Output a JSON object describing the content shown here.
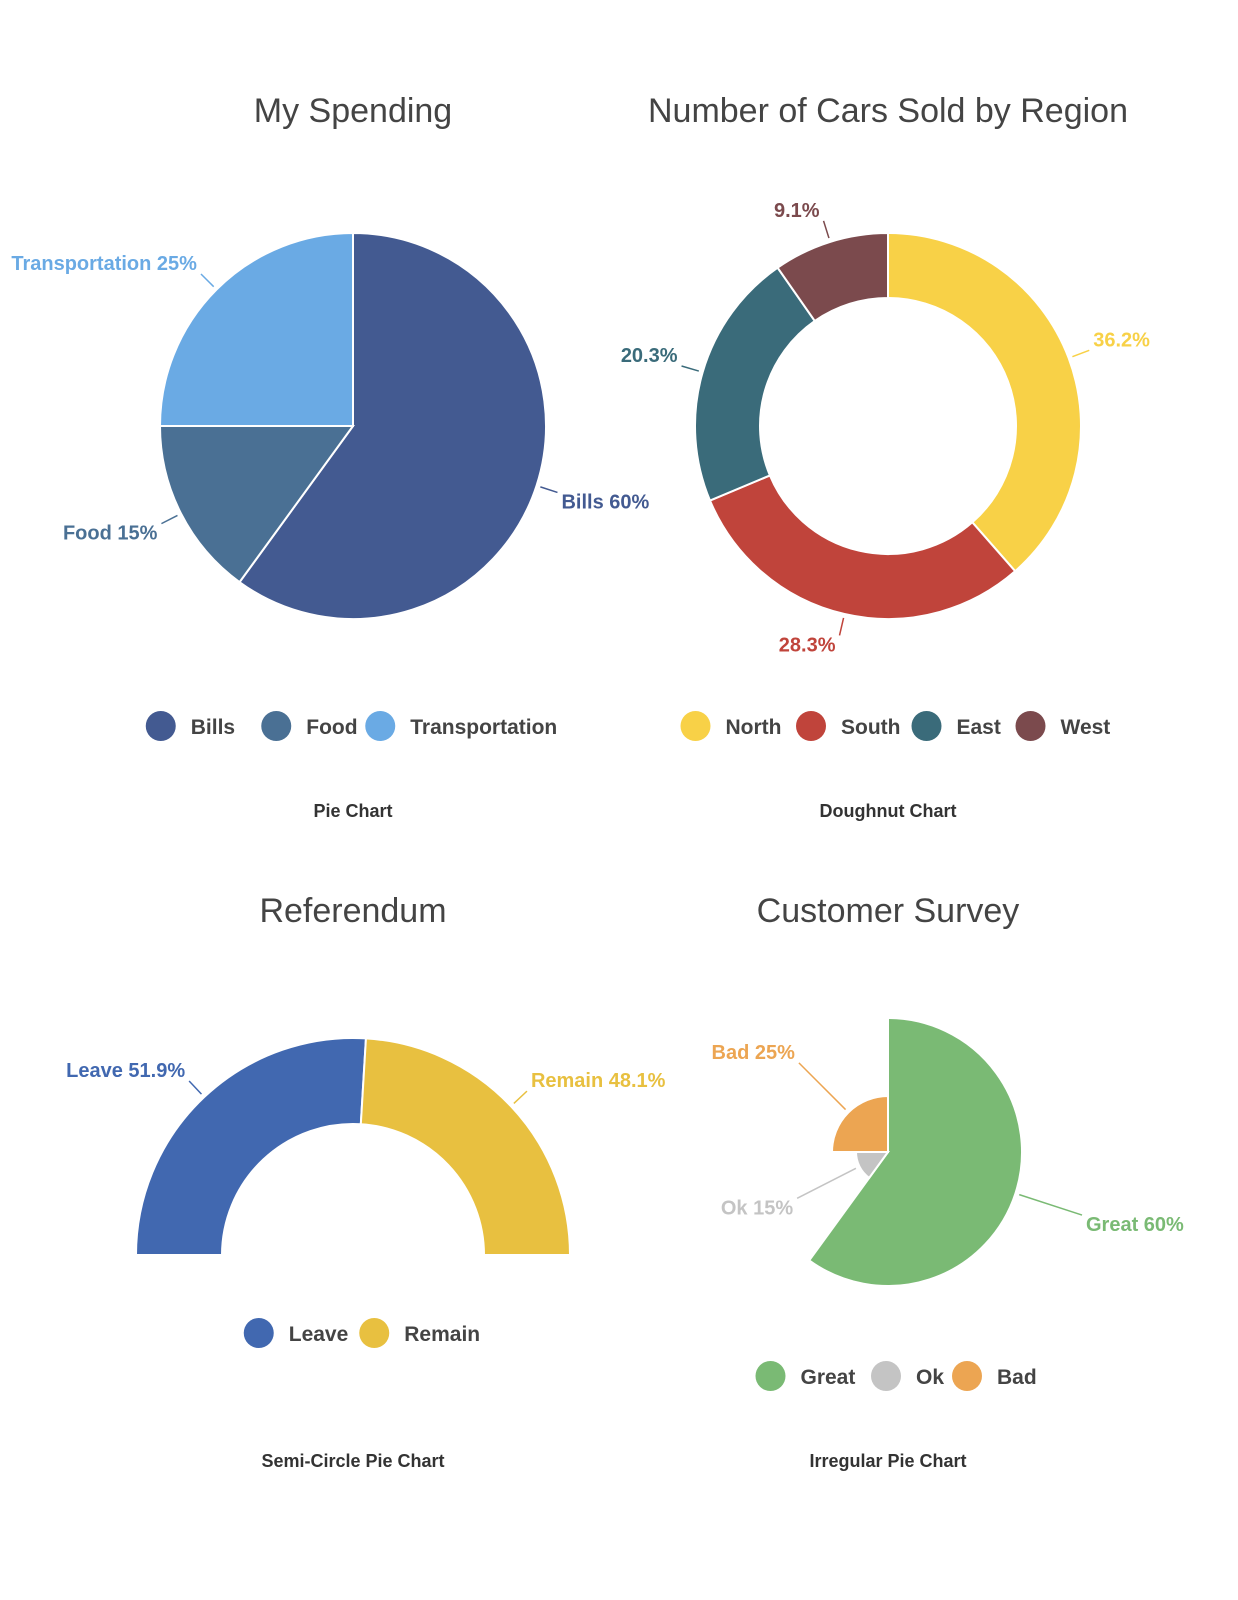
{
  "chart_data": [
    {
      "type": "pie",
      "variant": "pie",
      "title": "My Spending",
      "caption": "Pie Chart",
      "categories": [
        "Bills",
        "Food",
        "Transportation"
      ],
      "values": [
        60,
        15,
        25
      ],
      "labels": [
        "Bills 60%",
        "Food 15%",
        "Transportation 25%"
      ],
      "colors": [
        "#435a91",
        "#4a7094",
        "#6aaae4"
      ],
      "legend": "bottom"
    },
    {
      "type": "pie",
      "variant": "doughnut",
      "title": "Number of Cars Sold by Region",
      "caption": "Doughnut Chart",
      "categories": [
        "North",
        "South",
        "East",
        "West"
      ],
      "values": [
        36.2,
        28.3,
        20.3,
        9.1
      ],
      "labels": [
        "36.2%",
        "28.3%",
        "20.3%",
        "9.1%"
      ],
      "colors": [
        "#f8d147",
        "#c0443b",
        "#3a6b7a",
        "#7b4a4d"
      ],
      "legend": "bottom"
    },
    {
      "type": "pie",
      "variant": "semi-circle",
      "title": "Referendum",
      "caption": "Semi-Circle Pie Chart",
      "categories": [
        "Leave",
        "Remain"
      ],
      "values": [
        51.9,
        48.1
      ],
      "labels": [
        "Leave 51.9%",
        "Remain 48.1%"
      ],
      "colors": [
        "#4168b0",
        "#e8c040"
      ],
      "legend": "bottom"
    },
    {
      "type": "pie",
      "variant": "irregular",
      "title": "Customer Survey",
      "caption": "Irregular Pie Chart",
      "categories": [
        "Great",
        "Ok",
        "Bad"
      ],
      "values": [
        60,
        15,
        25
      ],
      "labels": [
        "Great 60%",
        "Ok 15%",
        "Bad 25%"
      ],
      "colors": [
        "#7aba74",
        "#c4c4c4",
        "#eca552"
      ],
      "legend": "bottom"
    }
  ]
}
